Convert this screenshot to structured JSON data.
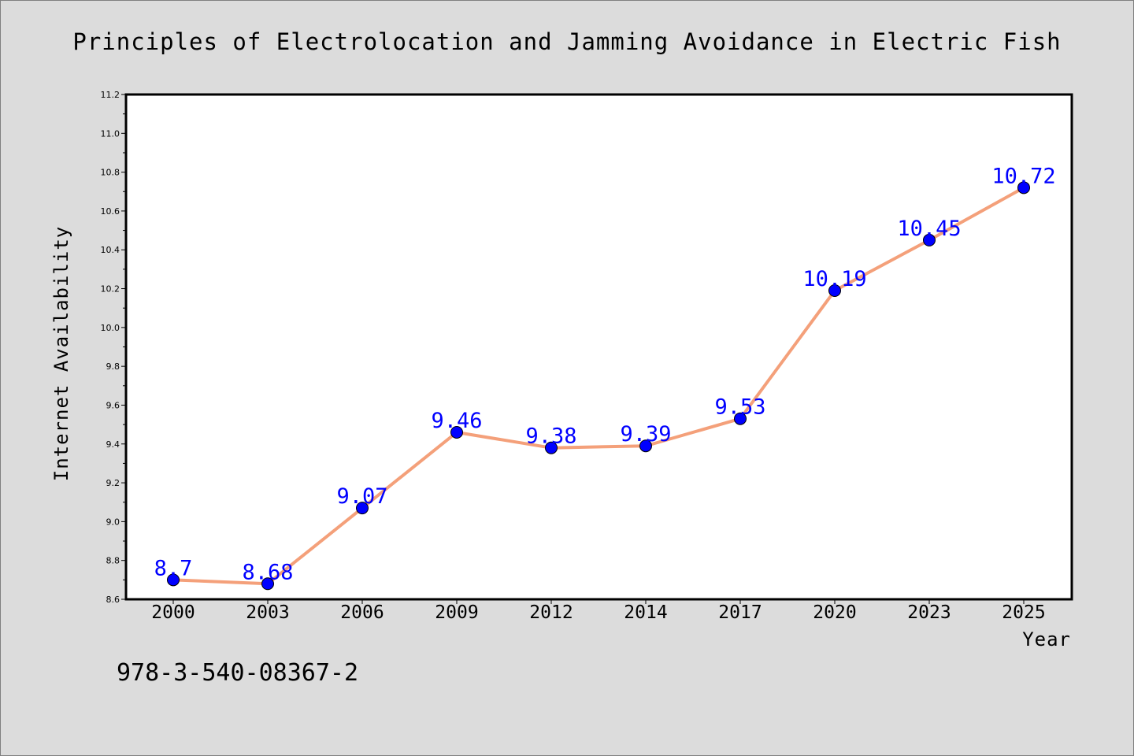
{
  "chart_data": {
    "type": "line",
    "title": "Principles of Electrolocation and Jamming Avoidance in Electric Fish",
    "xlabel": "Year",
    "ylabel": "Internet Availability",
    "categories": [
      "2000",
      "2003",
      "2006",
      "2009",
      "2012",
      "2014",
      "2017",
      "2020",
      "2023",
      "2025"
    ],
    "values": [
      8.7,
      8.68,
      9.07,
      9.46,
      9.38,
      9.39,
      9.53,
      10.19,
      10.45,
      10.72
    ],
    "data_labels": [
      "8.7",
      "8.68",
      "9.07",
      "9.46",
      "9.38",
      "9.39",
      "9.53",
      "10.19",
      "10.45",
      "10.72"
    ],
    "ylim": [
      8.6,
      11.2
    ],
    "yticks": [
      "8.6",
      "8.8",
      "9.0",
      "9.2",
      "9.4",
      "9.6",
      "9.8",
      "10.0",
      "10.2",
      "10.4",
      "10.6",
      "10.8",
      "11.0",
      "11.2"
    ],
    "grid": false,
    "legend": "none",
    "colors": {
      "line": "#f4a07a",
      "marker": "#0000ff",
      "label": "#0000ff",
      "background": "#dcdcdc",
      "plot_area": "#ffffff"
    }
  },
  "annotation": {
    "isbn": "978-3-540-08367-2"
  }
}
